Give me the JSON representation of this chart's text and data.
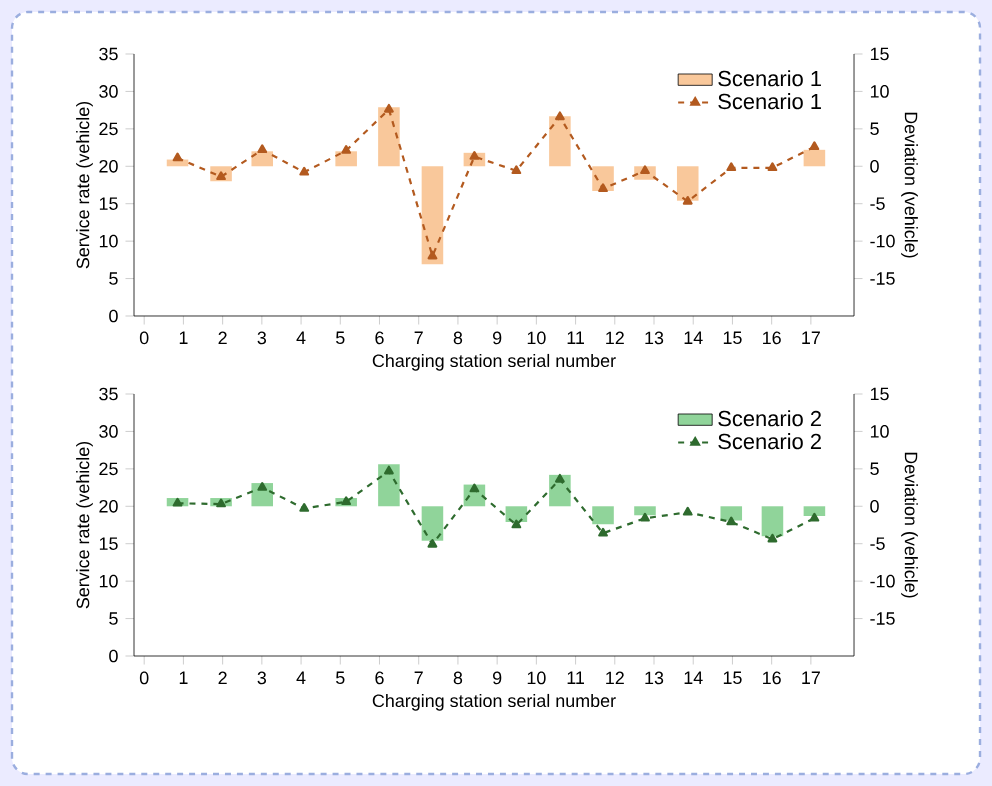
{
  "chart_data": [
    {
      "type": "bar",
      "xlabel": "Charging station serial number",
      "ylabel": "Service rate (vehicle)",
      "y2label": "Deviation (vehicle)",
      "x": [
        0.85,
        1.96,
        3.01,
        4.08,
        5.15,
        6.24,
        7.35,
        8.42,
        9.49,
        10.6,
        11.7,
        12.77,
        13.86,
        14.97,
        16.02,
        17.09
      ],
      "xlim": [
        -0.26,
        18.1
      ],
      "xticks": [
        0,
        1,
        2,
        3,
        4,
        5,
        6,
        7,
        8,
        9,
        10,
        11,
        12,
        13,
        14,
        15,
        16,
        17
      ],
      "ylim": [
        0,
        35
      ],
      "yticks": [
        0,
        5,
        10,
        15,
        20,
        25,
        30,
        35
      ],
      "y2lim": [
        -20,
        15
      ],
      "y2ticks": [
        -15,
        -10,
        -5,
        0,
        5,
        10,
        15
      ],
      "legend": "top right",
      "series": [
        {
          "name": "Scenario 1",
          "axis": "y2",
          "color": "#f9c89b",
          "values": [
            0.9,
            -2.0,
            2.0,
            0,
            2.0,
            7.9,
            -13.1,
            1.8,
            0,
            6.7,
            -3.3,
            -1.8,
            -4.6,
            0,
            0,
            2.2
          ]
        },
        {
          "name": "Scenario 1",
          "type": "line",
          "color": "#b35a1f",
          "marker": "triangle",
          "line_style": "dashed",
          "values": [
            21.1,
            18.6,
            22.2,
            19.2,
            22.1,
            27.6,
            8.0,
            21.3,
            19.4,
            26.6,
            17.0,
            19.4,
            15.3,
            19.8,
            19.8,
            22.6
          ]
        }
      ]
    },
    {
      "type": "bar",
      "xlabel": "Charging station serial number",
      "ylabel": "Service rate (vehicle)",
      "y2label": "Deviation (vehicle)",
      "x": [
        0.85,
        1.96,
        3.01,
        4.08,
        5.15,
        6.24,
        7.35,
        8.42,
        9.49,
        10.6,
        11.7,
        12.77,
        13.86,
        14.97,
        16.02,
        17.09
      ],
      "xlim": [
        -0.26,
        18.1
      ],
      "xticks": [
        0,
        1,
        2,
        3,
        4,
        5,
        6,
        7,
        8,
        9,
        10,
        11,
        12,
        13,
        14,
        15,
        16,
        17
      ],
      "ylim": [
        0,
        35
      ],
      "yticks": [
        0,
        5,
        10,
        15,
        20,
        25,
        30,
        35
      ],
      "y2lim": [
        -20,
        15
      ],
      "y2ticks": [
        -15,
        -10,
        -5,
        0,
        5,
        10,
        15
      ],
      "legend": "top right",
      "series": [
        {
          "name": "Scenario 2",
          "axis": "y2",
          "color": "#90d49a",
          "values": [
            1.1,
            1.1,
            3.1,
            0,
            1.1,
            5.6,
            -4.6,
            2.9,
            -2.1,
            4.2,
            -2.4,
            -1.2,
            0,
            -1.9,
            -4.0,
            -1.3
          ]
        },
        {
          "name": "Scenario 2",
          "type": "line",
          "color": "#2e6b2e",
          "marker": "triangle",
          "line_style": "dashed",
          "values": [
            20.4,
            20.3,
            22.5,
            19.7,
            20.6,
            24.7,
            14.9,
            22.3,
            17.5,
            23.6,
            16.4,
            18.4,
            19.2,
            17.9,
            15.6,
            18.4
          ]
        }
      ]
    }
  ]
}
